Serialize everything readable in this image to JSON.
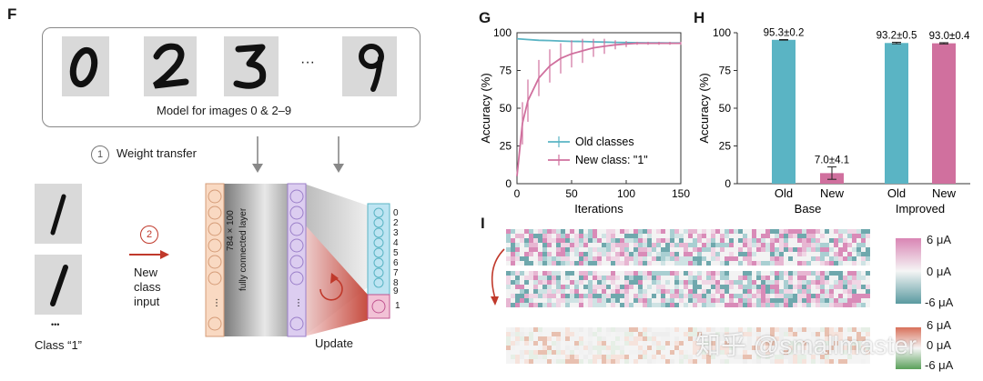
{
  "panels": {
    "F": {
      "letter": "F",
      "box_caption": "Model for images 0 & 2–9",
      "digits": [
        "0",
        "2",
        "3",
        "9"
      ],
      "ellipsis": "···",
      "step1_num": "1",
      "step1_label": "Weight transfer",
      "step2_num": "2",
      "new_input": [
        "New",
        "class",
        "input"
      ],
      "class_label": "Class “1”",
      "class_dots": "•••",
      "layer_label_1": "784 × 100",
      "layer_label_2": "fully connected layer",
      "update_label": "Update",
      "outputs": [
        "0",
        "2",
        "3",
        "4",
        "5",
        "6",
        "7",
        "8",
        "9"
      ],
      "new_output": "1",
      "colors": {
        "input_layer": "#f9d9c2",
        "hidden_layer": "#dccdf0",
        "old_out": "#bde4f2",
        "new_out": "#f2c2d6",
        "arrow_red": "#c0392b"
      }
    },
    "G": {
      "letter": "G"
    },
    "H": {
      "letter": "H"
    },
    "I": {
      "letter": "I",
      "scale1": [
        "6 μA",
        "0 μA",
        "-6 μA"
      ],
      "scale2": [
        "6 μA",
        "0 μA",
        "-6 μA"
      ]
    }
  },
  "watermark": "知乎 @smallmaster",
  "chart_data": [
    {
      "type": "line",
      "panel": "G",
      "xlabel": "Iterations",
      "ylabel": "Accuracy (%)",
      "xlim": [
        0,
        150
      ],
      "ylim": [
        0,
        100
      ],
      "xticks": [
        0,
        50,
        100,
        150
      ],
      "yticks": [
        0,
        25,
        50,
        75,
        100
      ],
      "legend_position": "lower-right",
      "series": [
        {
          "name": "Old classes",
          "color": "#5ab4c4",
          "x": [
            0,
            10,
            20,
            30,
            40,
            50,
            60,
            70,
            80,
            90,
            100,
            110,
            120,
            130,
            140,
            150
          ],
          "y": [
            96,
            95.5,
            95,
            94.8,
            94.5,
            94.3,
            94.2,
            94,
            93.8,
            93.6,
            93.5,
            93.4,
            93.3,
            93.3,
            93.2,
            93.2
          ]
        },
        {
          "name": "New class: \"1\"",
          "color": "#d0709e",
          "x": [
            0,
            5,
            10,
            20,
            30,
            40,
            50,
            60,
            70,
            80,
            90,
            100,
            110,
            120,
            130,
            140,
            150
          ],
          "y": [
            5,
            40,
            55,
            70,
            78,
            83,
            86,
            88,
            90,
            91,
            92,
            92.5,
            93,
            93,
            93,
            93,
            93
          ],
          "err": [
            0,
            14,
            14,
            12,
            11,
            10,
            9,
            8,
            6,
            5,
            3,
            2,
            1,
            1,
            1,
            1,
            1
          ]
        }
      ]
    },
    {
      "type": "bar",
      "panel": "H",
      "ylabel": "Accuracy (%)",
      "ylim": [
        0,
        100
      ],
      "yticks": [
        0,
        25,
        50,
        75,
        100
      ],
      "categories": [
        "Old",
        "New",
        "Old",
        "New"
      ],
      "groups": [
        "Base",
        "Improved"
      ],
      "values": [
        95.3,
        7.0,
        93.2,
        93.0
      ],
      "errors": [
        0.2,
        4.1,
        0.5,
        0.4
      ],
      "labels": [
        "95.3±0.2",
        "7.0±4.1",
        "93.2±0.5",
        "93.0±0.4"
      ],
      "colors": [
        "#5ab4c4",
        "#d0709e",
        "#5ab4c4",
        "#d0709e"
      ]
    }
  ]
}
